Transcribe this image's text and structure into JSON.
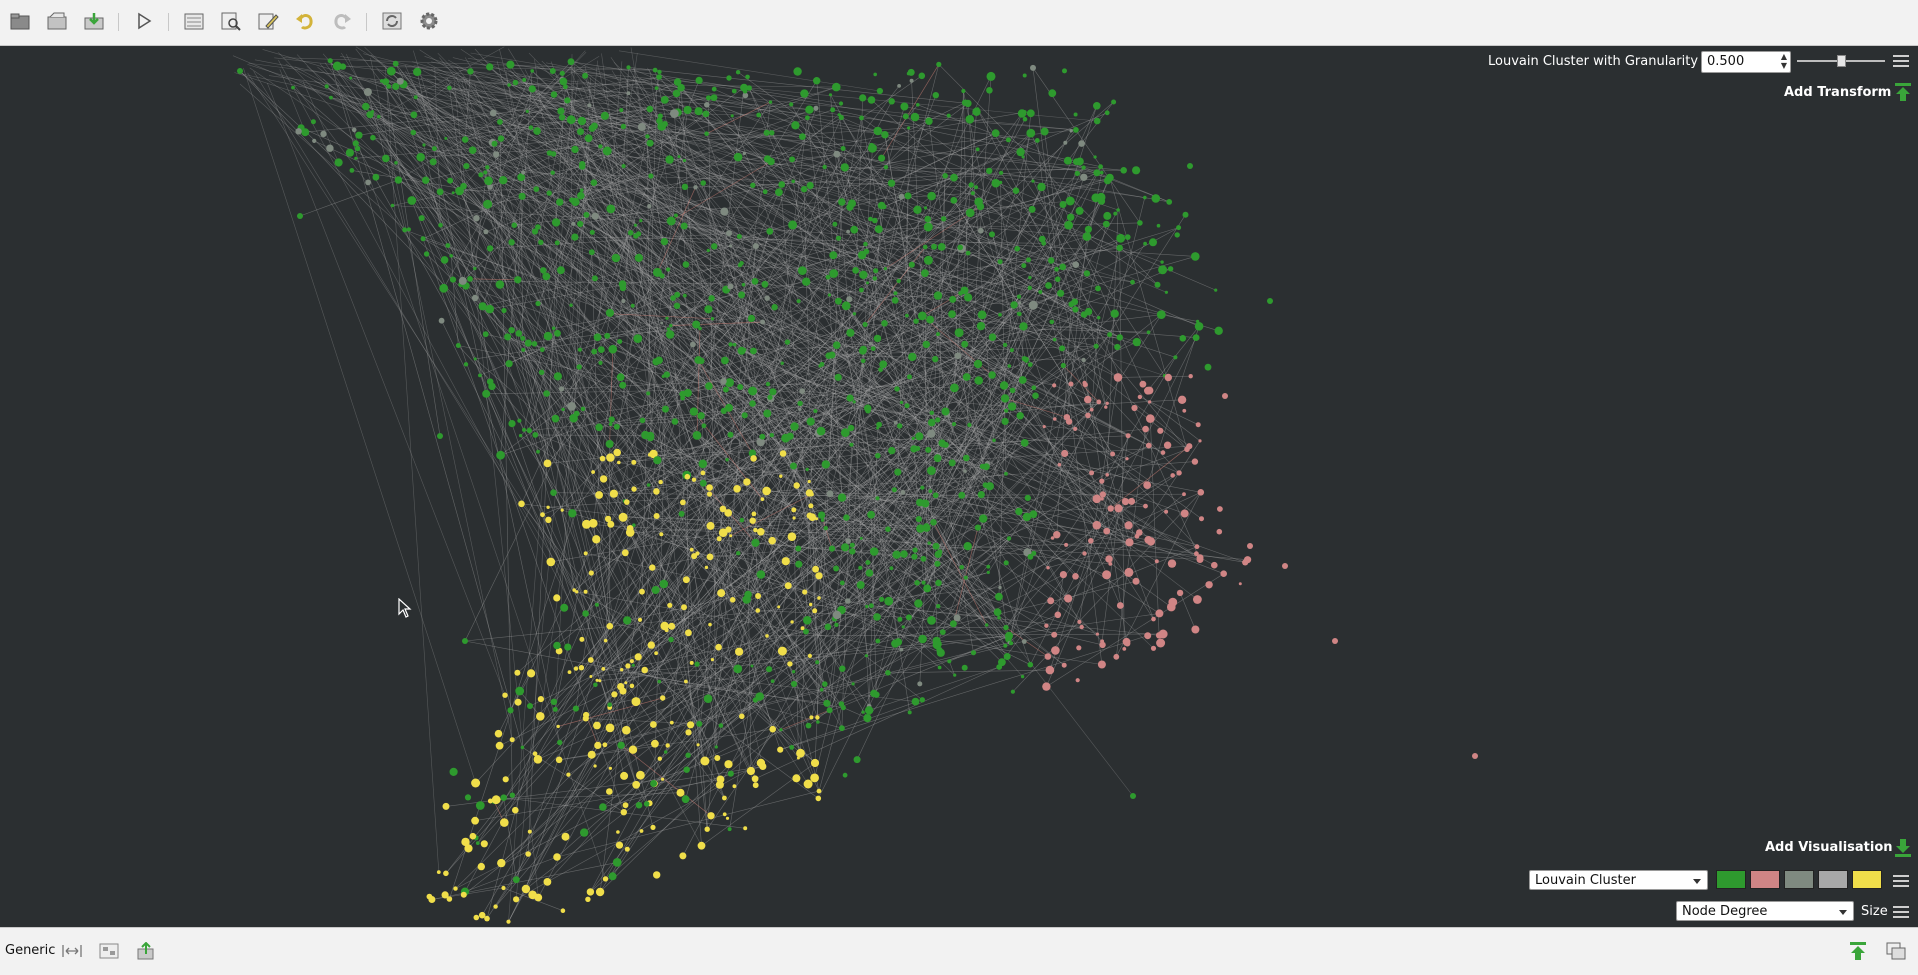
{
  "toolbar": {
    "buttons": [
      {
        "name": "open-project-icon"
      },
      {
        "name": "open-file-icon"
      },
      {
        "name": "save-icon"
      },
      {
        "name": "play-icon"
      },
      {
        "name": "clear-icon"
      },
      {
        "name": "search-icon"
      },
      {
        "name": "edit-icon"
      },
      {
        "name": "undo-icon"
      },
      {
        "name": "redo-icon"
      },
      {
        "name": "refresh-icon"
      },
      {
        "name": "settings-gear-icon"
      }
    ]
  },
  "transform": {
    "label": "Louvain Cluster with Granularity =",
    "granularity_value": "0.500",
    "slider_fraction": 0.5,
    "add_label": "Add Transform"
  },
  "visualisation": {
    "add_label": "Add Visualisation",
    "color_by": "Louvain Cluster",
    "size_by": "Node Degree",
    "size_label": "Size",
    "palette": [
      "#2e9a2e",
      "#d08585",
      "#7f8a80",
      "#a8a8a8",
      "#f0de4a"
    ]
  },
  "statusbar": {
    "mode_label": "Generic"
  },
  "colors": {
    "canvas_bg": "#2b2f31",
    "edge_gray": "#a9a9a9",
    "edge_red": "#d9857a",
    "accent_green": "#3aa53a"
  }
}
